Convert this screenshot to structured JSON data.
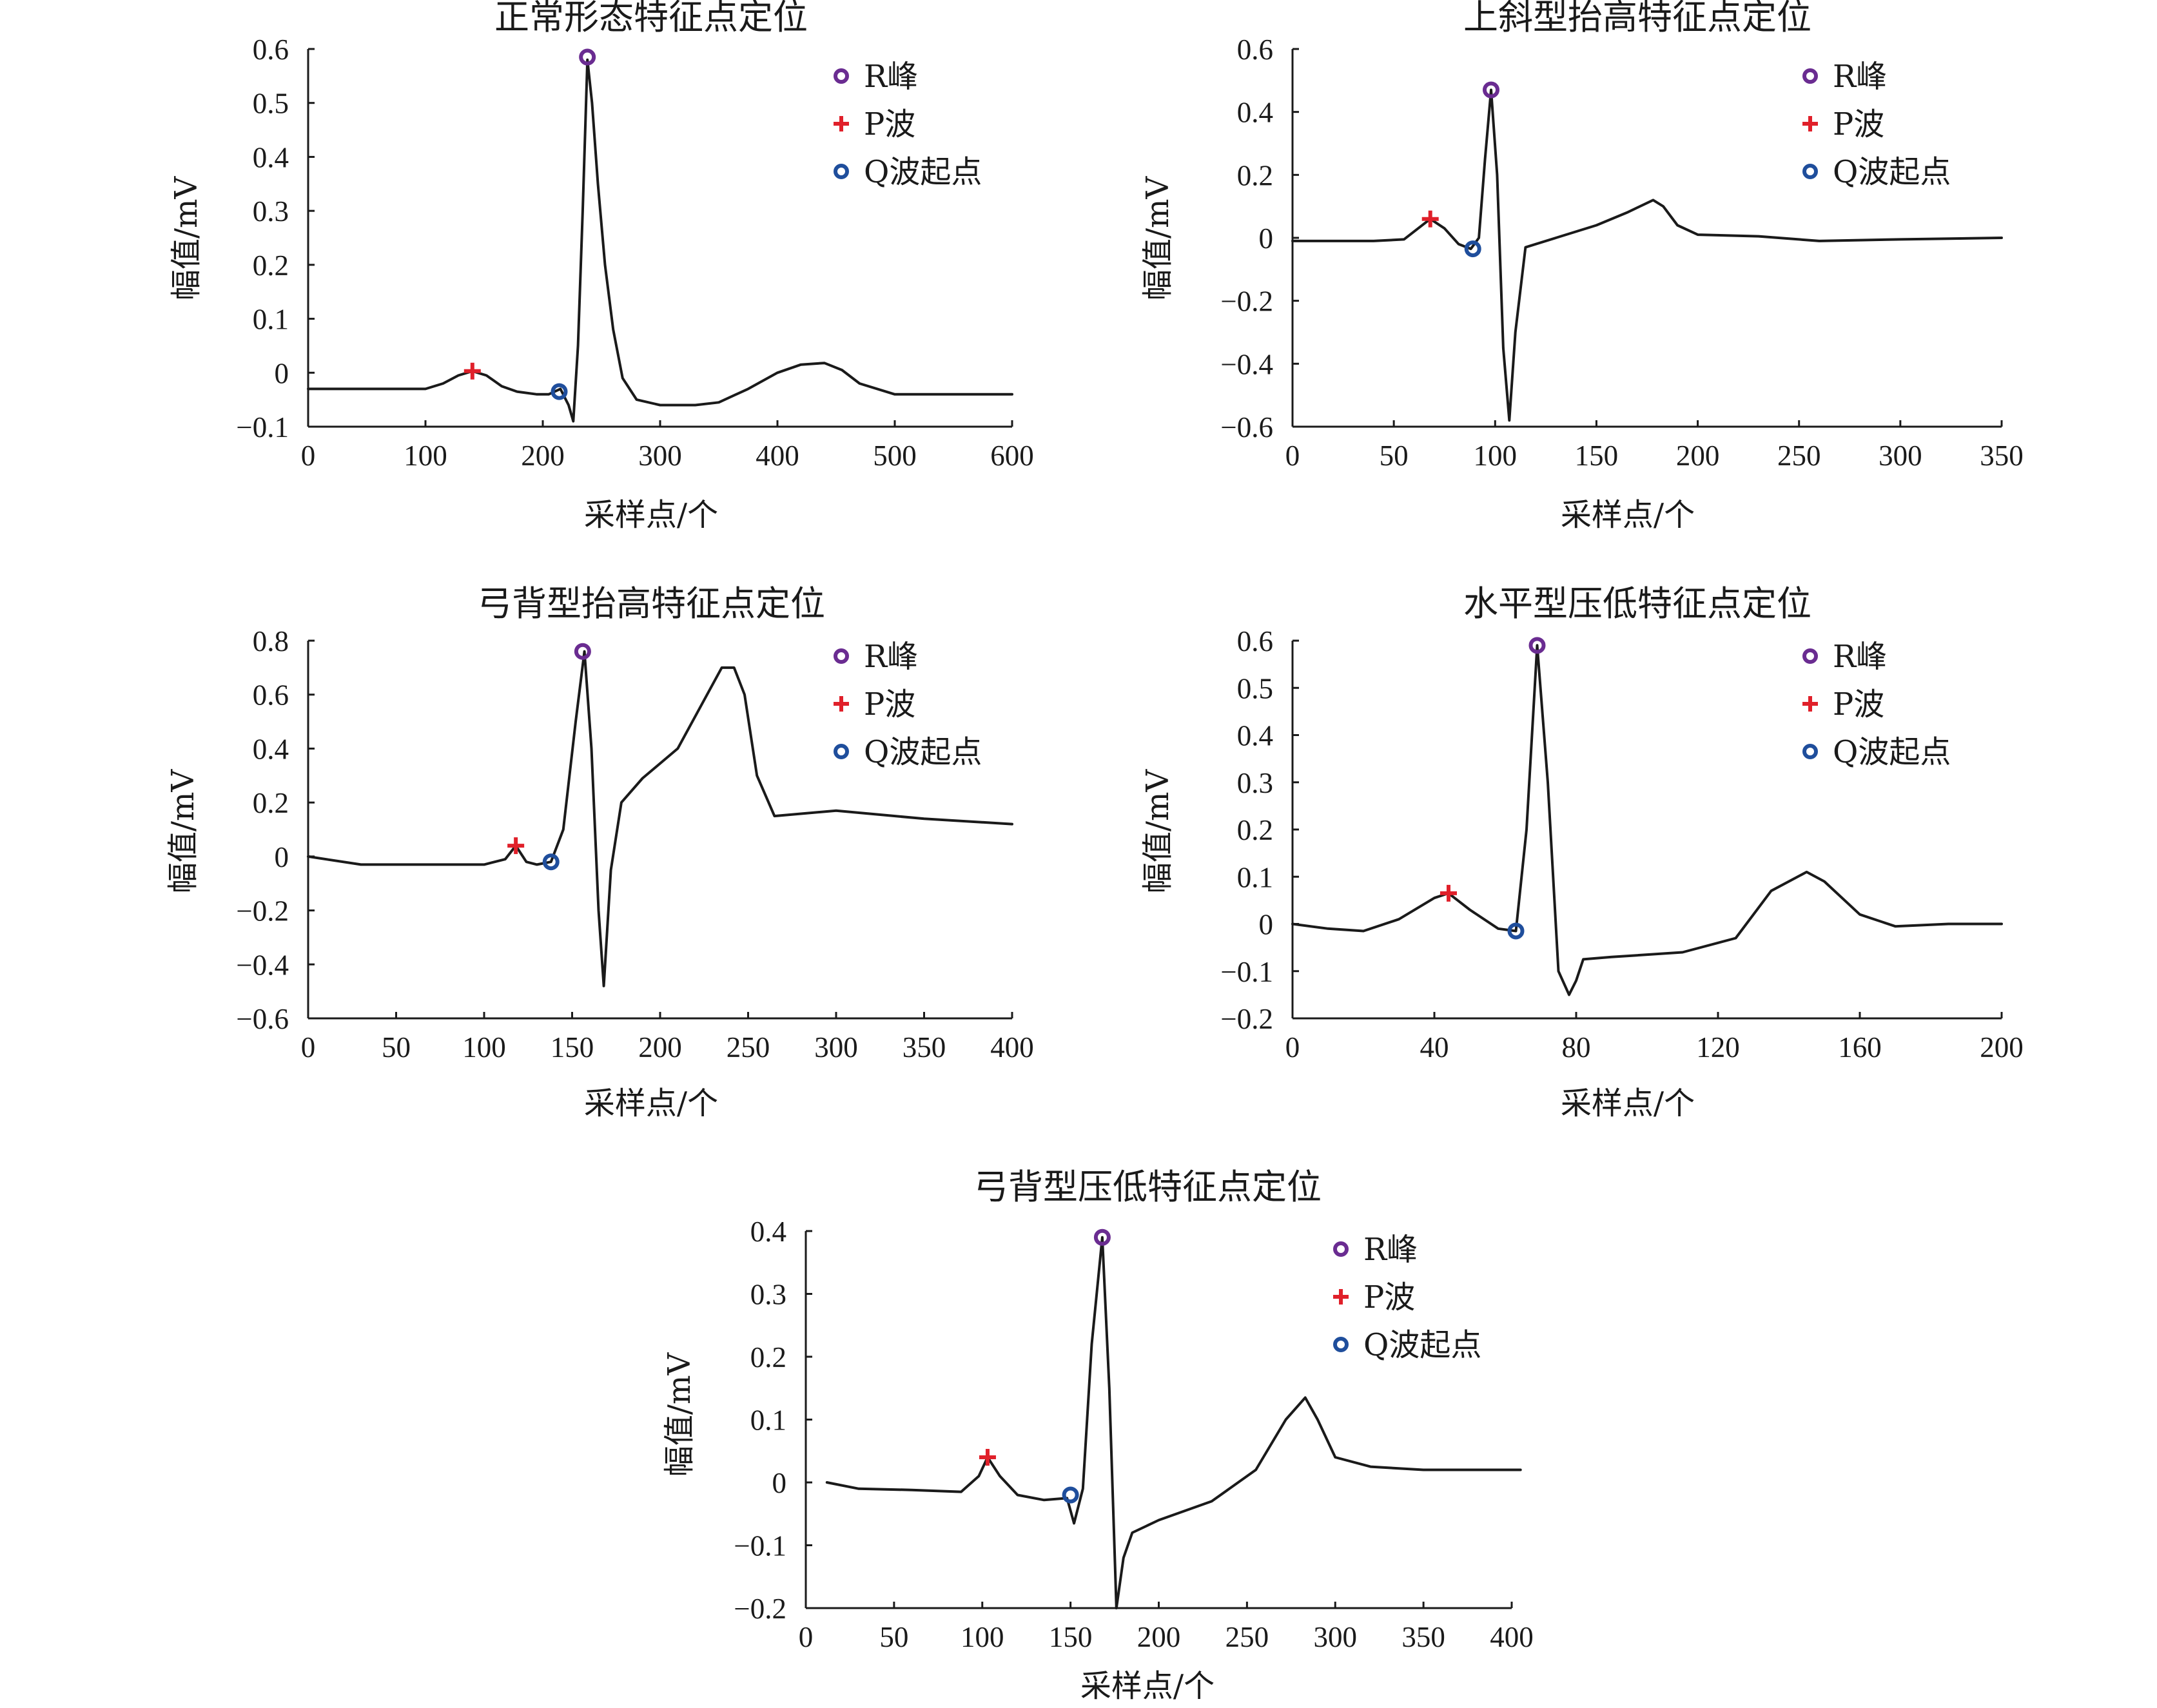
{
  "chart_data": [
    {
      "type": "line",
      "title": "正常形态特征点定位",
      "xlabel": "采样点/个",
      "ylabel": "幅值/mV",
      "xlim": [
        0,
        600
      ],
      "ylim": [
        -0.1,
        0.6
      ],
      "xticks": [
        0,
        100,
        200,
        300,
        400,
        500,
        600
      ],
      "xtick_labels": [
        "0",
        "100",
        "200",
        "300",
        "400",
        "500",
        "600"
      ],
      "yticks": [
        -0.1,
        0,
        0.1,
        0.2,
        0.3,
        0.4,
        0.5,
        0.6
      ],
      "ytick_labels": [
        "−0.1",
        "0",
        "0.1",
        "0.2",
        "0.3",
        "0.4",
        "0.5",
        "0.6"
      ],
      "legend_position": "top-right",
      "grid": false,
      "line_color": "#1a1a1a",
      "series": [
        {
          "x": [
            0,
            100,
            115,
            128,
            140,
            152,
            165,
            178,
            195,
            205,
            215,
            222,
            226,
            230,
            234,
            238,
            242,
            247,
            253,
            260,
            268,
            280,
            300,
            330,
            350,
            375,
            400,
            420,
            440,
            455,
            470,
            500,
            540,
            600
          ],
          "y": [
            -0.03,
            -0.03,
            -0.02,
            -0.005,
            0.003,
            -0.005,
            -0.025,
            -0.035,
            -0.04,
            -0.04,
            -0.03,
            -0.06,
            -0.09,
            0.05,
            0.3,
            0.58,
            0.5,
            0.35,
            0.2,
            0.08,
            -0.01,
            -0.05,
            -0.06,
            -0.06,
            -0.055,
            -0.03,
            0,
            0.015,
            0.018,
            0.005,
            -0.02,
            -0.04,
            -0.04,
            -0.04
          ]
        }
      ],
      "markers": [
        {
          "name": "R峰",
          "x": 238,
          "y": 0.585,
          "symbol": "circle",
          "color": "#6a2c91"
        },
        {
          "name": "P波",
          "x": 140,
          "y": 0.003,
          "symbol": "plus",
          "color": "#e0202a"
        },
        {
          "name": "Q波起点",
          "x": 214,
          "y": -0.035,
          "symbol": "circle",
          "color": "#1f4e9c"
        }
      ]
    },
    {
      "type": "line",
      "title": "上斜型抬高特征点定位",
      "xlabel": "采样点/个",
      "ylabel": "幅值/mV",
      "xlim": [
        0,
        350
      ],
      "ylim": [
        -0.6,
        0.6
      ],
      "xticks": [
        0,
        50,
        100,
        150,
        200,
        250,
        300,
        350
      ],
      "xtick_labels": [
        "0",
        "50",
        "100",
        "150",
        "200",
        "250",
        "300",
        "350"
      ],
      "yticks": [
        -0.6,
        -0.4,
        -0.2,
        0,
        0.2,
        0.4,
        0.6
      ],
      "ytick_labels": [
        "−0.6",
        "−0.4",
        "−0.2",
        "0",
        "0.2",
        "0.4",
        "0.6"
      ],
      "legend_position": "top-right",
      "grid": false,
      "line_color": "#1a1a1a",
      "series": [
        {
          "x": [
            0,
            40,
            55,
            62,
            68,
            75,
            82,
            88,
            92,
            95,
            98,
            101,
            104,
            107,
            110,
            115,
            130,
            150,
            165,
            178,
            183,
            190,
            200,
            230,
            260,
            300,
            350
          ],
          "y": [
            -0.01,
            -0.01,
            -0.005,
            0.03,
            0.06,
            0.03,
            -0.02,
            -0.035,
            0,
            0.25,
            0.47,
            0.2,
            -0.35,
            -0.58,
            -0.3,
            -0.03,
            0,
            0.04,
            0.08,
            0.12,
            0.1,
            0.04,
            0.01,
            0.005,
            -0.01,
            -0.005,
            0
          ]
        }
      ],
      "markers": [
        {
          "name": "R峰",
          "x": 98,
          "y": 0.47,
          "symbol": "circle",
          "color": "#6a2c91"
        },
        {
          "name": "P波",
          "x": 68,
          "y": 0.06,
          "symbol": "plus",
          "color": "#e0202a"
        },
        {
          "name": "Q波起点",
          "x": 89,
          "y": -0.035,
          "symbol": "circle",
          "color": "#1f4e9c"
        }
      ]
    },
    {
      "type": "line",
      "title": "弓背型抬高特征点定位",
      "xlabel": "采样点/个",
      "ylabel": "幅值/mV",
      "xlim": [
        0,
        400
      ],
      "ylim": [
        -0.6,
        0.8
      ],
      "xticks": [
        0,
        50,
        100,
        150,
        200,
        250,
        300,
        350,
        400
      ],
      "xtick_labels": [
        "0",
        "50",
        "100",
        "150",
        "200",
        "250",
        "300",
        "350",
        "400"
      ],
      "yticks": [
        -0.6,
        -0.4,
        -0.2,
        0,
        0.2,
        0.4,
        0.6,
        0.8
      ],
      "ytick_labels": [
        "−0.6",
        "−0.4",
        "−0.2",
        "0",
        "0.2",
        "0.4",
        "0.6",
        "0.8"
      ],
      "legend_position": "top-right",
      "grid": false,
      "line_color": "#1a1a1a",
      "series": [
        {
          "x": [
            0,
            30,
            100,
            112,
            118,
            124,
            130,
            138,
            145,
            152,
            157,
            161,
            165,
            168,
            172,
            178,
            190,
            210,
            225,
            235,
            242,
            248,
            255,
            265,
            300,
            350,
            400
          ],
          "y": [
            0,
            -0.03,
            -0.03,
            -0.01,
            0.04,
            -0.02,
            -0.03,
            -0.02,
            0.1,
            0.5,
            0.76,
            0.4,
            -0.2,
            -0.48,
            -0.05,
            0.2,
            0.29,
            0.4,
            0.58,
            0.7,
            0.7,
            0.6,
            0.3,
            0.15,
            0.17,
            0.14,
            0.12
          ]
        }
      ],
      "markers": [
        {
          "name": "R峰",
          "x": 156,
          "y": 0.76,
          "symbol": "circle",
          "color": "#6a2c91"
        },
        {
          "name": "P波",
          "x": 118,
          "y": 0.04,
          "symbol": "plus",
          "color": "#e0202a"
        },
        {
          "name": "Q波起点",
          "x": 138,
          "y": -0.02,
          "symbol": "circle",
          "color": "#1f4e9c"
        }
      ]
    },
    {
      "type": "line",
      "title": "水平型压低特征点定位",
      "xlabel": "采样点/个",
      "ylabel": "幅值/mV",
      "xlim": [
        0,
        200
      ],
      "ylim": [
        -0.2,
        0.6
      ],
      "xticks": [
        0,
        40,
        80,
        120,
        160,
        200
      ],
      "xtick_labels": [
        "0",
        "40",
        "80",
        "120",
        "160",
        "200"
      ],
      "yticks": [
        -0.2,
        -0.1,
        0,
        0.1,
        0.2,
        0.3,
        0.4,
        0.5,
        0.6
      ],
      "ytick_labels": [
        "−0.2",
        "−0.1",
        "0",
        "0.1",
        "0.2",
        "0.3",
        "0.4",
        "0.5",
        "0.6"
      ],
      "legend_position": "top-right",
      "grid": false,
      "line_color": "#1a1a1a",
      "series": [
        {
          "x": [
            0,
            10,
            20,
            30,
            40,
            44,
            50,
            58,
            63,
            66,
            69,
            72,
            75,
            78,
            80,
            82,
            90,
            110,
            125,
            135,
            145,
            150,
            160,
            170,
            185,
            200
          ],
          "y": [
            0,
            -0.01,
            -0.015,
            0.01,
            0.055,
            0.065,
            0.03,
            -0.01,
            -0.015,
            0.2,
            0.59,
            0.3,
            -0.1,
            -0.15,
            -0.12,
            -0.075,
            -0.07,
            -0.06,
            -0.03,
            0.07,
            0.11,
            0.09,
            0.02,
            -0.005,
            0,
            0
          ]
        }
      ],
      "markers": [
        {
          "name": "R峰",
          "x": 69,
          "y": 0.59,
          "symbol": "circle",
          "color": "#6a2c91"
        },
        {
          "name": "P波",
          "x": 44,
          "y": 0.065,
          "symbol": "plus",
          "color": "#e0202a"
        },
        {
          "name": "Q波起点",
          "x": 63,
          "y": -0.015,
          "symbol": "circle",
          "color": "#1f4e9c"
        }
      ]
    },
    {
      "type": "line",
      "title": "弓背型压低特征点定位",
      "xlabel": "采样点/个",
      "ylabel": "幅值/mV",
      "xlim": [
        0,
        400
      ],
      "ylim": [
        -0.2,
        0.4
      ],
      "xticks": [
        0,
        50,
        100,
        150,
        200,
        250,
        300,
        350,
        400
      ],
      "xtick_labels": [
        "0",
        "50",
        "100",
        "150",
        "200",
        "250",
        "300",
        "350",
        "400"
      ],
      "yticks": [
        -0.2,
        -0.1,
        0,
        0.1,
        0.2,
        0.3,
        0.4
      ],
      "ytick_labels": [
        "−0.2",
        "−0.1",
        "0",
        "0.1",
        "0.2",
        "0.3",
        "0.4"
      ],
      "legend_position": "top-right",
      "grid": false,
      "line_color": "#1a1a1a",
      "series": [
        {
          "x": [
            12,
            30,
            60,
            88,
            98,
            103,
            110,
            120,
            135,
            148,
            152,
            157,
            162,
            168,
            172,
            176,
            180,
            185,
            200,
            230,
            255,
            272,
            283,
            290,
            300,
            320,
            350,
            405
          ],
          "y": [
            0,
            -0.01,
            -0.012,
            -0.015,
            0.01,
            0.04,
            0.01,
            -0.02,
            -0.028,
            -0.025,
            -0.065,
            -0.01,
            0.22,
            0.39,
            0.15,
            -0.2,
            -0.12,
            -0.08,
            -0.06,
            -0.03,
            0.02,
            0.1,
            0.135,
            0.1,
            0.04,
            0.025,
            0.02,
            0.02
          ]
        }
      ],
      "markers": [
        {
          "name": "R峰",
          "x": 168,
          "y": 0.39,
          "symbol": "circle",
          "color": "#6a2c91"
        },
        {
          "name": "P波",
          "x": 103,
          "y": 0.04,
          "symbol": "plus",
          "color": "#e0202a"
        },
        {
          "name": "Q波起点",
          "x": 150,
          "y": -0.02,
          "symbol": "circle",
          "color": "#1f4e9c"
        }
      ]
    }
  ]
}
